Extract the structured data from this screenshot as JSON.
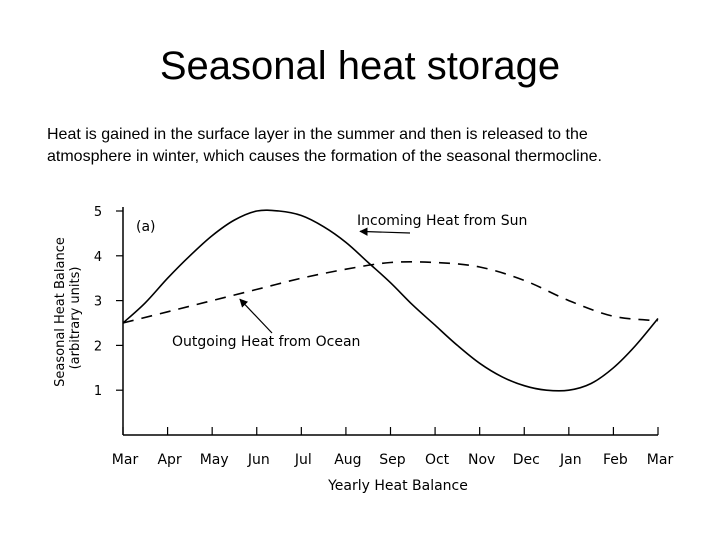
{
  "slide": {
    "title": "Seasonal heat storage",
    "body_line_1": "Heat is gained in the surface layer in the summer and then is released to the",
    "body_line_2": "atmosphere in winter, which causes the formation of the seasonal thermocline."
  },
  "chart_data": {
    "type": "line",
    "panel_label": "(a)",
    "xlabel": "Yearly Heat Balance",
    "ylabel_line_1": "Seasonal Heat Balance",
    "ylabel_line_2": "(arbitrary units)",
    "ylim": [
      0,
      5
    ],
    "yticks": [
      "1",
      "2",
      "3",
      "4",
      "5"
    ],
    "categories": [
      "Mar",
      "Apr",
      "May",
      "Jun",
      "Jul",
      "Aug",
      "Sep",
      "Oct",
      "Nov",
      "Dec",
      "Jan",
      "Feb",
      "Mar"
    ],
    "grid": false,
    "legend": "none",
    "series": [
      {
        "id": "incoming",
        "name": "Incoming Heat from Sun",
        "style": "solid",
        "color": "#000000",
        "x": [
          0,
          0.5,
          1,
          1.5,
          2,
          2.5,
          3,
          3.5,
          4,
          4.5,
          5,
          5.5,
          6,
          6.5,
          7,
          7.5,
          8,
          8.5,
          9,
          9.5,
          10,
          10.5,
          11,
          11.5,
          12
        ],
        "values": [
          2.5,
          2.95,
          3.5,
          4.0,
          4.45,
          4.8,
          5.0,
          5.0,
          4.9,
          4.65,
          4.3,
          3.85,
          3.4,
          2.9,
          2.45,
          2.0,
          1.6,
          1.3,
          1.1,
          1.0,
          1.0,
          1.15,
          1.5,
          2.0,
          2.6
        ]
      },
      {
        "id": "outgoing",
        "name": "Outgoing Heat from Ocean",
        "style": "dashed",
        "color": "#000000",
        "x": [
          0,
          1,
          2,
          3,
          4,
          5,
          6,
          7,
          8,
          9,
          10,
          11,
          12
        ],
        "values": [
          2.5,
          2.75,
          3.0,
          3.25,
          3.5,
          3.7,
          3.85,
          3.85,
          3.75,
          3.45,
          3.0,
          2.65,
          2.55
        ]
      }
    ]
  }
}
